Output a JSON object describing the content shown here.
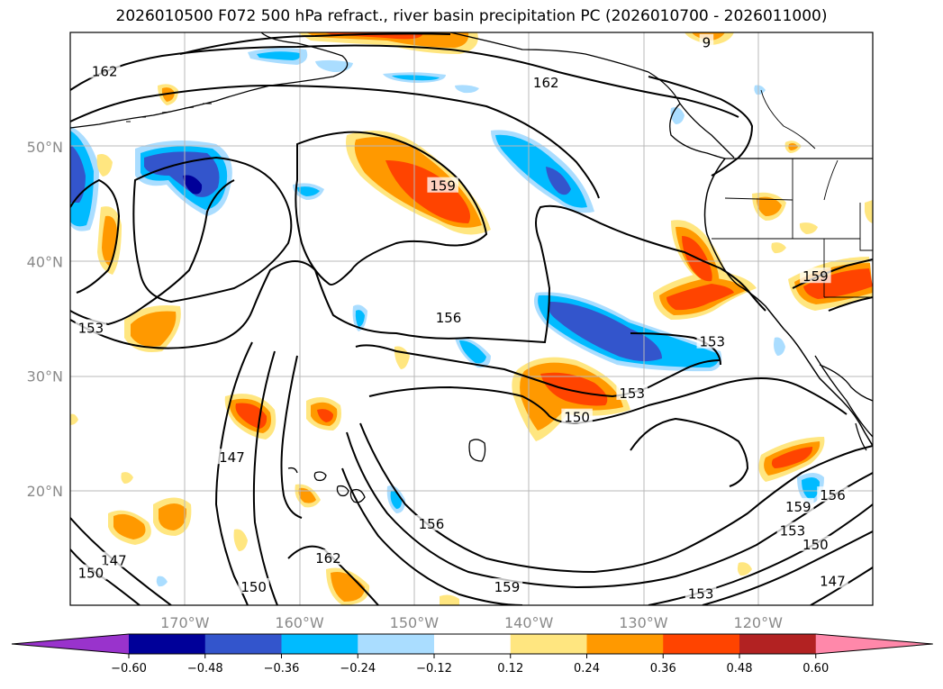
{
  "title": "2026010500 F072 500 hPa refract., river basin precipitation PC (2026010700 - 2026011000)",
  "map": {
    "lon_range": [
      -180,
      -110
    ],
    "lat_range": [
      10,
      60
    ],
    "lat_ticks": [
      {
        "value": 20,
        "label": "20°N"
      },
      {
        "value": 30,
        "label": "30°N"
      },
      {
        "value": 40,
        "label": "40°N"
      },
      {
        "value": 50,
        "label": "50°N"
      }
    ],
    "lon_ticks": [
      {
        "value": -170,
        "label": "170°W"
      },
      {
        "value": -160,
        "label": "160°W"
      },
      {
        "value": -150,
        "label": "150°W"
      },
      {
        "value": -140,
        "label": "140°W"
      },
      {
        "value": -130,
        "label": "130°W"
      },
      {
        "value": -120,
        "label": "120°W"
      }
    ],
    "grid": true,
    "contour_labels": [
      {
        "text": "162",
        "lon": -177,
        "lat": 56.5
      },
      {
        "text": "162",
        "lon": -138.5,
        "lat": 55.5
      },
      {
        "text": "159",
        "lon": -147.5,
        "lat": 46.5
      },
      {
        "text": "156",
        "lon": -147,
        "lat": 35
      },
      {
        "text": "153",
        "lon": -178.2,
        "lat": 34.1
      },
      {
        "text": "153",
        "lon": -124,
        "lat": 32.9
      },
      {
        "text": "153",
        "lon": -131,
        "lat": 28.4
      },
      {
        "text": "150",
        "lon": -135.8,
        "lat": 26.3
      },
      {
        "text": "159",
        "lon": -115,
        "lat": 38.6
      },
      {
        "text": "147",
        "lon": -165.9,
        "lat": 22.8
      },
      {
        "text": "156",
        "lon": -148.5,
        "lat": 17
      },
      {
        "text": "162",
        "lon": -157.5,
        "lat": 14
      },
      {
        "text": "159",
        "lon": -141.9,
        "lat": 11.5
      },
      {
        "text": "153",
        "lon": -125,
        "lat": 10.9
      },
      {
        "text": "147",
        "lon": -176.2,
        "lat": 13.8
      },
      {
        "text": "150",
        "lon": -178.2,
        "lat": 12.7
      },
      {
        "text": "150",
        "lon": -164,
        "lat": 11.5
      },
      {
        "text": "159",
        "lon": -116.5,
        "lat": 18.5
      },
      {
        "text": "156",
        "lon": -113.5,
        "lat": 19.5
      },
      {
        "text": "153",
        "lon": -117,
        "lat": 16.4
      },
      {
        "text": "150",
        "lon": -115,
        "lat": 15.2
      },
      {
        "text": "147",
        "lon": -113.5,
        "lat": 12
      },
      {
        "text": "9",
        "lon": -124.5,
        "lat": 59
      }
    ]
  },
  "colorbar": {
    "levels": [
      -0.6,
      -0.48,
      -0.36,
      -0.24,
      -0.12,
      0.12,
      0.24,
      0.36,
      0.48,
      0.6
    ],
    "tick_labels": [
      "−0.60",
      "−0.48",
      "−0.36",
      "−0.24",
      "−0.12",
      "0.12",
      "0.24",
      "0.36",
      "0.48",
      "0.60"
    ],
    "colors": [
      "#9933cc",
      "#000099",
      "#3355cc",
      "#00bbff",
      "#aaddff",
      "#ffffff",
      "#ffe680",
      "#ff9900",
      "#ff4400",
      "#b22222",
      "#ff88aa"
    ]
  }
}
